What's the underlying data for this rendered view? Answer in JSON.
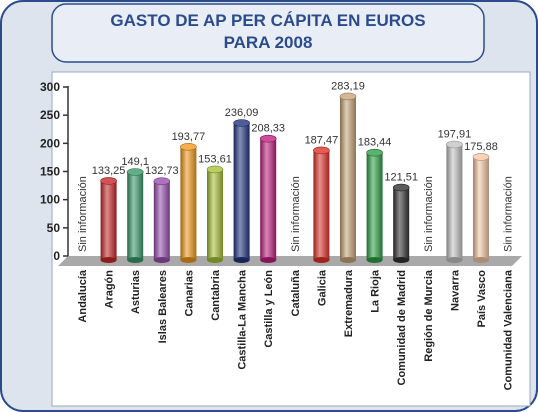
{
  "chart_data": {
    "type": "bar",
    "title": [
      "GASTO DE AP PER CÁPITA EN EUROS",
      "PARA 2008"
    ],
    "categories": [
      "Andalucía",
      "Aragón",
      "Asturias",
      "Islas Baleares",
      "Canarias",
      "Cantabria",
      "Castilla-La Mancha",
      "Castilla y León",
      "Cataluña",
      "Galicia",
      "Extremadura",
      "La Rioja",
      "Comunidad de Madrid",
      "Región de Murcia",
      "Navarra",
      "País Vasco",
      "Comunidad Valenciana"
    ],
    "values": [
      null,
      133.25,
      149.1,
      132.73,
      193.77,
      153.61,
      236.09,
      208.33,
      null,
      187.47,
      283.19,
      183.44,
      121.51,
      null,
      197.91,
      175.88,
      null
    ],
    "value_labels": [
      "Sin información",
      "133,25",
      "149,1",
      "132,73",
      "193,77",
      "153,61",
      "236,09",
      "208,33",
      "Sin información",
      "187,47",
      "283,19",
      "183,44",
      "121,51",
      "Sin información",
      "197,91",
      "175,88",
      "Sin información"
    ],
    "colors": [
      null,
      "#c8282a",
      "#3a9a6a",
      "#9a4fb0",
      "#f29a1e",
      "#a6c236",
      "#22357f",
      "#c0207f",
      null,
      "#e0322a",
      "#c9a67a",
      "#2fa046",
      "#333333",
      null,
      "#c4c4c4",
      "#f6c8a8",
      null
    ],
    "ylim": [
      0,
      300
    ],
    "yticks": [
      0,
      50,
      100,
      150,
      200,
      250,
      300
    ]
  }
}
